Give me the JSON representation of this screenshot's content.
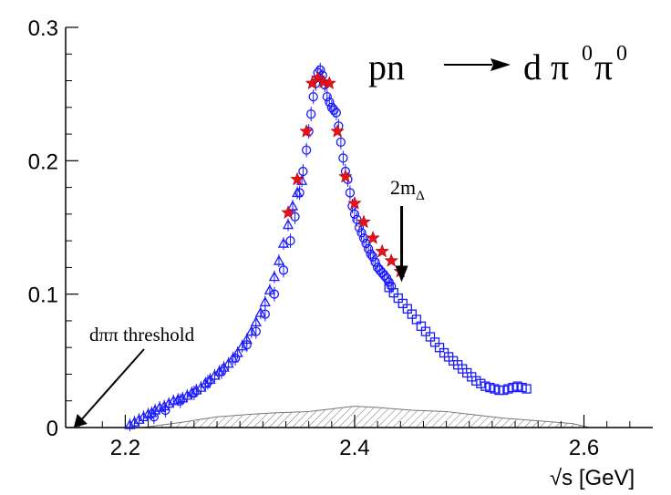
{
  "chart_data": {
    "type": "scatter",
    "reaction": {
      "initial": "pn",
      "final": "d π",
      "pi_sup_a": "0",
      "pi_sup_b": "0",
      "pi_b": "π"
    },
    "xlabel": "√s [GeV]",
    "xlim": [
      2.148,
      2.66
    ],
    "ylim": [
      0,
      0.3
    ],
    "x_ticks": [
      2.2,
      2.4,
      2.6
    ],
    "x_tick_labels": [
      "2.2",
      "2.4",
      "2.6"
    ],
    "y_ticks": [
      0,
      0.1,
      0.2,
      0.3
    ],
    "y_tick_labels": [
      "0",
      "0.1",
      "0.2",
      "0.3"
    ],
    "annotations": {
      "threshold": {
        "text": "dππ threshold",
        "x": 2.155,
        "y": 0
      },
      "two_m_delta": {
        "text_main": "2m",
        "text_sub": "Δ",
        "x": 2.441,
        "y": 0.109
      }
    },
    "series": [
      {
        "marker": "triangle",
        "color": "#1a1aff",
        "x": [
          2.204,
          2.208,
          2.212,
          2.216,
          2.22,
          2.223,
          2.226,
          2.23,
          2.234,
          2.238,
          2.242,
          2.246,
          2.25,
          2.254,
          2.258,
          2.262,
          2.266,
          2.27,
          2.274,
          2.278,
          2.282,
          2.286,
          2.29,
          2.294,
          2.298,
          2.302,
          2.306,
          2.31,
          2.314,
          2.318,
          2.322,
          2.326,
          2.33,
          2.334,
          2.338,
          2.342,
          2.346,
          2.35,
          2.354
        ],
        "y": [
          0.002,
          0.004,
          0.006,
          0.008,
          0.01,
          0.011,
          0.013,
          0.015,
          0.016,
          0.018,
          0.02,
          0.021,
          0.022,
          0.024,
          0.026,
          0.028,
          0.03,
          0.033,
          0.036,
          0.039,
          0.042,
          0.045,
          0.048,
          0.052,
          0.056,
          0.061,
          0.066,
          0.072,
          0.079,
          0.086,
          0.094,
          0.103,
          0.113,
          0.125,
          0.138,
          0.152,
          0.166,
          0.176,
          0.185
        ]
      },
      {
        "marker": "circle",
        "color": "#1a1aff",
        "x": [
          2.225,
          2.235,
          2.248,
          2.26,
          2.272,
          2.284,
          2.296,
          2.306,
          2.314,
          2.322,
          2.33,
          2.338,
          2.344,
          2.348,
          2.352,
          2.355,
          2.358,
          2.36,
          2.362,
          2.364,
          2.366,
          2.368,
          2.37,
          2.372,
          2.374,
          2.376,
          2.378,
          2.38,
          2.382,
          2.384,
          2.386,
          2.388,
          2.39,
          2.392,
          2.394,
          2.396,
          2.398,
          2.4,
          2.402,
          2.404,
          2.406,
          2.408,
          2.41,
          2.412,
          2.414,
          2.416,
          2.418,
          2.42,
          2.422,
          2.424,
          2.426,
          2.428,
          2.43,
          2.432
        ],
        "y": [
          0.008,
          0.013,
          0.02,
          0.026,
          0.034,
          0.042,
          0.052,
          0.062,
          0.072,
          0.085,
          0.1,
          0.118,
          0.14,
          0.158,
          0.176,
          0.192,
          0.208,
          0.222,
          0.235,
          0.248,
          0.258,
          0.266,
          0.268,
          0.264,
          0.257,
          0.248,
          0.244,
          0.24,
          0.238,
          0.236,
          0.226,
          0.214,
          0.202,
          0.192,
          0.186,
          0.176,
          0.166,
          0.16,
          0.156,
          0.15,
          0.146,
          0.142,
          0.138,
          0.134,
          0.13,
          0.128,
          0.124,
          0.12,
          0.118,
          0.116,
          0.114,
          0.112,
          0.109,
          0.106
        ]
      },
      {
        "marker": "square",
        "color": "#1a1aff",
        "x": [
          2.43,
          2.434,
          2.438,
          2.442,
          2.446,
          2.45,
          2.454,
          2.458,
          2.462,
          2.466,
          2.47,
          2.474,
          2.478,
          2.482,
          2.486,
          2.49,
          2.494,
          2.498,
          2.502,
          2.506,
          2.51,
          2.514,
          2.518,
          2.522,
          2.526,
          2.53,
          2.534,
          2.538,
          2.542,
          2.546,
          2.55
        ],
        "y": [
          0.105,
          0.101,
          0.097,
          0.093,
          0.089,
          0.085,
          0.081,
          0.076,
          0.072,
          0.068,
          0.064,
          0.06,
          0.056,
          0.053,
          0.05,
          0.047,
          0.044,
          0.041,
          0.038,
          0.035,
          0.033,
          0.031,
          0.03,
          0.029,
          0.028,
          0.028,
          0.029,
          0.03,
          0.031,
          0.03,
          0.029
        ]
      },
      {
        "marker": "star",
        "color": "#e8101a",
        "x": [
          2.342,
          2.35,
          2.358,
          2.363,
          2.368,
          2.373,
          2.378,
          2.385,
          2.392,
          2.4,
          2.408,
          2.416,
          2.424,
          2.432,
          2.44
        ],
        "y": [
          0.161,
          0.186,
          0.222,
          0.258,
          0.262,
          0.259,
          0.258,
          0.222,
          0.188,
          0.168,
          0.154,
          0.142,
          0.132,
          0.125,
          0.117
        ]
      }
    ],
    "background_band": {
      "x": [
        2.215,
        2.25,
        2.28,
        2.31,
        2.33,
        2.36,
        2.38,
        2.4,
        2.42,
        2.45,
        2.48,
        2.5,
        2.53,
        2.56,
        2.59,
        2.605
      ],
      "y": [
        0,
        0.004,
        0.008,
        0.01,
        0.011,
        0.012,
        0.014,
        0.016,
        0.015,
        0.013,
        0.012,
        0.01,
        0.007,
        0.005,
        0.003,
        0
      ]
    }
  }
}
